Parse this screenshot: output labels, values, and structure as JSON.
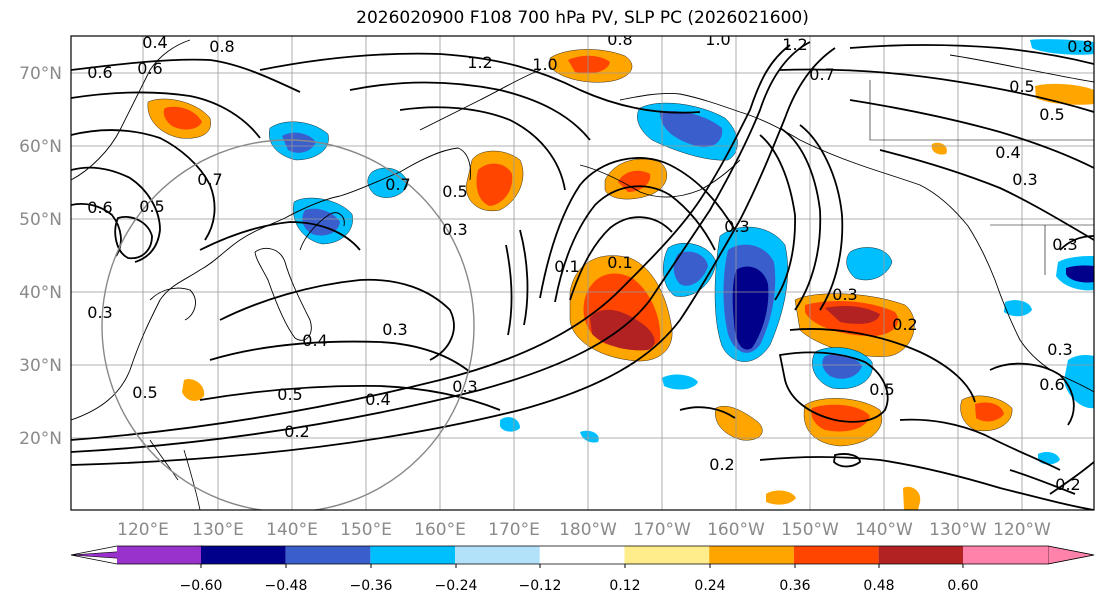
{
  "title": "2026020900 F108 700 hPa PV, SLP PC (2026021600)",
  "map": {
    "lat_labels": [
      "70°N",
      "60°N",
      "50°N",
      "40°N",
      "30°N",
      "20°N"
    ],
    "lon_labels": [
      "120°E",
      "130°E",
      "140°E",
      "150°E",
      "160°E",
      "170°E",
      "180°W",
      "170°W",
      "160°W",
      "150°W",
      "140°W",
      "130°W",
      "120°W"
    ],
    "lat_range": [
      10,
      75
    ],
    "lon_range": [
      112,
      250
    ],
    "grid": true,
    "contour_labels": [
      "0.3",
      "0.4",
      "0.6",
      "0.8",
      "1.2",
      "1.0",
      "0.8",
      "1.0",
      "1.2",
      "0.7",
      "0.6",
      "0.5",
      "0.4",
      "0.3",
      "0.7",
      "0.6",
      "0.5",
      "0.7",
      "0.5",
      "0.3",
      "0.1",
      "0.1",
      "0.3",
      "0.3",
      "0.2",
      "0.4",
      "0.3",
      "0.3",
      "0.4",
      "0.5",
      "0.2",
      "0.2",
      "0.5",
      "0.6",
      "0.2",
      "0.3",
      "0.5",
      "0.8",
      "0.5",
      "0.3"
    ]
  },
  "colorbar": {
    "ticks": [
      "−0.60",
      "−0.48",
      "−0.36",
      "−0.24",
      "−0.12",
      "0.12",
      "0.24",
      "0.36",
      "0.48",
      "0.60"
    ],
    "colors": [
      "#9932cc",
      "#00008b",
      "#3a5fcd",
      "#00bfff",
      "#b2e2fa",
      "#ffffff",
      "#ffec8b",
      "#ffa500",
      "#ff4500",
      "#b22222",
      "#ff82ab"
    ]
  }
}
